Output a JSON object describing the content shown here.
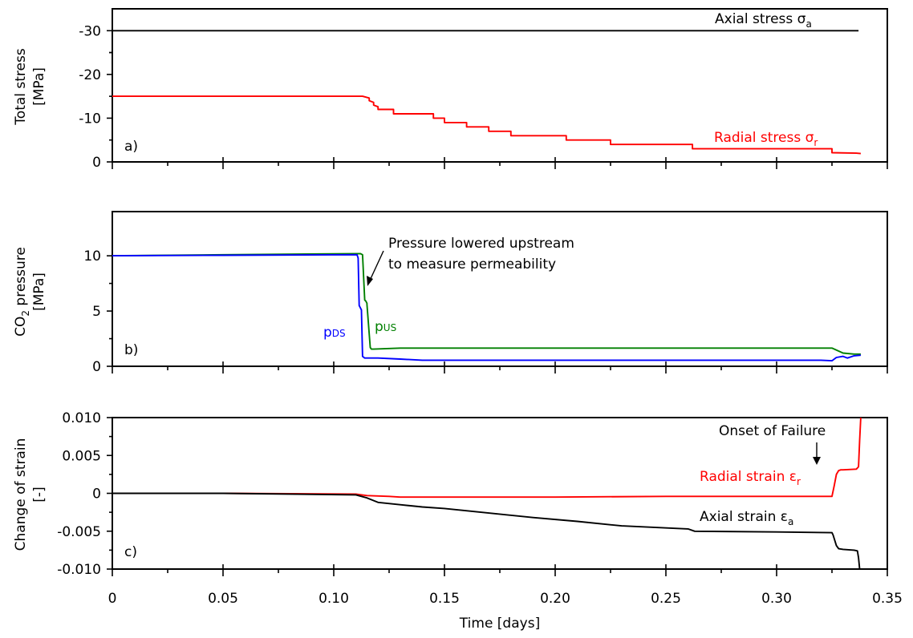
{
  "colors": {
    "black": "#000000",
    "red": "#ff0000",
    "green": "#008000",
    "blue": "#0000ff"
  },
  "chart_data": [
    {
      "type": "line",
      "panel_label": "a)",
      "ylabel_line1": "Total stress",
      "ylabel_line2": "[MPa]",
      "xlim": [
        0,
        0.35
      ],
      "ylim": [
        0,
        -35
      ],
      "y_inverted": true,
      "yticks": [
        0,
        -10,
        -20,
        -30
      ],
      "ytick_labels": [
        "0",
        "-10",
        "-20",
        "-30"
      ],
      "series": [
        {
          "name": "Axial stress σa",
          "color": "#000000",
          "x": [
            0,
            0.337
          ],
          "y": [
            -30,
            -30
          ]
        },
        {
          "name": "Radial stress σr",
          "color": "#ff0000",
          "x": [
            0,
            0.113,
            0.116,
            0.116,
            0.118,
            0.118,
            0.12,
            0.12,
            0.127,
            0.127,
            0.135,
            0.135,
            0.145,
            0.145,
            0.15,
            0.15,
            0.16,
            0.16,
            0.17,
            0.17,
            0.18,
            0.18,
            0.19,
            0.19,
            0.205,
            0.205,
            0.225,
            0.225,
            0.262,
            0.262,
            0.325,
            0.325,
            0.336,
            0.338
          ],
          "y": [
            -15,
            -15,
            -14.6,
            -14,
            -13.6,
            -13,
            -12.6,
            -12,
            -12,
            -11,
            -11,
            -11,
            -11,
            -10,
            -10,
            -9,
            -9,
            -8,
            -8,
            -7,
            -7,
            -6,
            -6,
            -6,
            -6,
            -5,
            -5,
            -4,
            -4,
            -3,
            -3,
            -2.1,
            -2,
            -1.9
          ]
        }
      ],
      "annotations": [
        {
          "text": "Axial stress σ",
          "sub": "a",
          "color": "#000000"
        },
        {
          "text": "Radial stress σ",
          "sub": "r",
          "color": "#ff0000"
        }
      ]
    },
    {
      "type": "line",
      "panel_label": "b)",
      "ylabel_line1": "CO",
      "ylabel_sub": "2",
      "ylabel_line1_rest": " pressure",
      "ylabel_line2": "[MPa]",
      "xlim": [
        0,
        0.35
      ],
      "ylim": [
        0,
        14
      ],
      "yticks": [
        0,
        5,
        10
      ],
      "ytick_labels": [
        "0",
        "5",
        "10"
      ],
      "series": [
        {
          "name": "pUS",
          "color": "#008000",
          "x": [
            0,
            0.05,
            0.112,
            0.113,
            0.114,
            0.1145,
            0.115,
            0.115,
            0.1165,
            0.117,
            0.118,
            0.13,
            0.2,
            0.32,
            0.325,
            0.33,
            0.335,
            0.338
          ],
          "y": [
            10,
            10.1,
            10.2,
            10.1,
            6,
            5.9,
            5.7,
            5.6,
            1.7,
            1.55,
            1.55,
            1.65,
            1.65,
            1.65,
            1.65,
            1.2,
            1.1,
            1.1
          ]
        },
        {
          "name": "pDS",
          "color": "#0000ff",
          "x": [
            0,
            0.05,
            0.1105,
            0.111,
            0.1115,
            0.112,
            0.1125,
            0.113,
            0.114,
            0.12,
            0.13,
            0.14,
            0.2,
            0.32,
            0.325,
            0.327,
            0.33,
            0.332,
            0.335,
            0.338
          ],
          "y": [
            10,
            10.05,
            10.1,
            9.8,
            5.5,
            5.3,
            5.1,
            0.9,
            0.75,
            0.75,
            0.65,
            0.55,
            0.55,
            0.55,
            0.5,
            0.8,
            0.9,
            0.75,
            0.95,
            1.0
          ]
        }
      ],
      "annotations": [
        {
          "text_line1": "Pressure lowered upstream",
          "text_line2": "to measure permeability",
          "color": "#000000"
        },
        {
          "text": "p",
          "sub": "US",
          "color": "#008000"
        },
        {
          "text": "p",
          "sub": "DS",
          "color": "#0000ff"
        }
      ]
    },
    {
      "type": "line",
      "panel_label": "c)",
      "ylabel_line1": "Change of strain",
      "ylabel_line2": "[-]",
      "xlabel": "Time [days]",
      "xlim": [
        0,
        0.35
      ],
      "ylim": [
        -0.01,
        0.01
      ],
      "xticks": [
        0,
        0.05,
        0.1,
        0.15,
        0.2,
        0.25,
        0.3,
        0.35
      ],
      "xtick_labels": [
        "0",
        "0.05",
        "0.10",
        "0.15",
        "0.20",
        "0.25",
        "0.30",
        "0.35"
      ],
      "yticks": [
        -0.01,
        -0.005,
        0,
        0.005,
        0.01
      ],
      "ytick_labels": [
        "-0.010",
        "-0.005",
        "0",
        "0.005",
        "0.010"
      ],
      "series": [
        {
          "name": "Radial strain εr",
          "color": "#ff0000",
          "x": [
            0,
            0.05,
            0.11,
            0.115,
            0.125,
            0.13,
            0.15,
            0.2,
            0.25,
            0.3,
            0.325,
            0.326,
            0.327,
            0.328,
            0.329,
            0.33,
            0.336,
            0.337,
            0.3375,
            0.338
          ],
          "y": [
            0,
            0,
            -0.0001,
            -0.0003,
            -0.0004,
            -0.0005,
            -0.0005,
            -0.0005,
            -0.0004,
            -0.0004,
            -0.0004,
            0.001,
            0.0025,
            0.003,
            0.0031,
            0.0031,
            0.0032,
            0.0035,
            0.007,
            0.01
          ]
        },
        {
          "name": "Axial strain εa",
          "color": "#000000",
          "x": [
            0,
            0.05,
            0.11,
            0.115,
            0.12,
            0.13,
            0.14,
            0.15,
            0.17,
            0.19,
            0.21,
            0.23,
            0.26,
            0.263,
            0.3,
            0.325,
            0.3255,
            0.327,
            0.328,
            0.33,
            0.335,
            0.3365,
            0.337,
            0.3375
          ],
          "y": [
            0,
            0,
            -0.0002,
            -0.0006,
            -0.0012,
            -0.0015,
            -0.0018,
            -0.002,
            -0.0026,
            -0.0032,
            -0.0037,
            -0.0043,
            -0.0047,
            -0.005,
            -0.0051,
            -0.0052,
            -0.0055,
            -0.0069,
            -0.0073,
            -0.0074,
            -0.0075,
            -0.0076,
            -0.0085,
            -0.01
          ]
        }
      ],
      "annotations": [
        {
          "text": "Onset of Failure",
          "color": "#000000"
        },
        {
          "text": "Radial strain ε",
          "sub": "r",
          "color": "#ff0000"
        },
        {
          "text": "Axial strain ε",
          "sub": "a",
          "color": "#000000"
        }
      ]
    }
  ]
}
